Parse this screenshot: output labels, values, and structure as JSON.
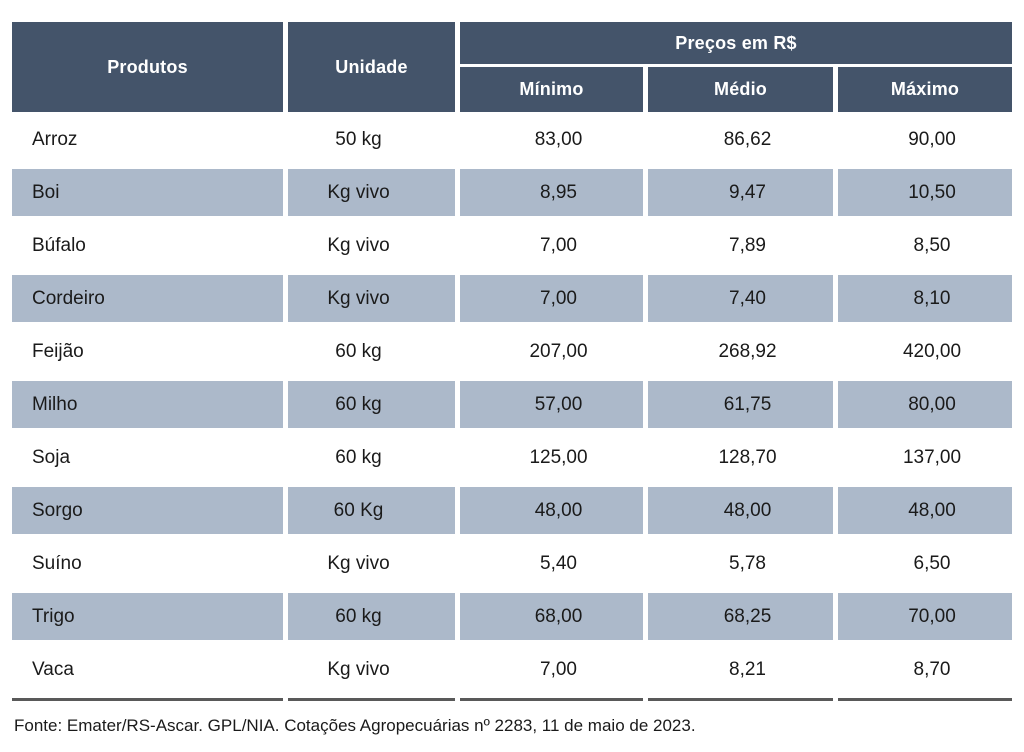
{
  "colors": {
    "header_bg": "#44546A",
    "header_text": "#FFFFFF",
    "stripe_bg": "#ACB9CA",
    "body_text": "#1A1A1A",
    "rule": "#595959"
  },
  "table": {
    "headers": {
      "produtos": "Produtos",
      "unidade": "Unidade",
      "precos_group": "Preços em R$",
      "minimo": "Mínimo",
      "medio": "Médio",
      "maximo": "Máximo"
    },
    "rows": [
      {
        "produto": "Arroz",
        "unidade": "50 kg",
        "minimo": "83,00",
        "medio": "86,62",
        "maximo": "90,00"
      },
      {
        "produto": "Boi",
        "unidade": "Kg vivo",
        "minimo": "8,95",
        "medio": "9,47",
        "maximo": "10,50"
      },
      {
        "produto": "Búfalo",
        "unidade": "Kg vivo",
        "minimo": "7,00",
        "medio": "7,89",
        "maximo": "8,50"
      },
      {
        "produto": "Cordeiro",
        "unidade": "Kg vivo",
        "minimo": "7,00",
        "medio": "7,40",
        "maximo": "8,10"
      },
      {
        "produto": "Feijão",
        "unidade": "60 kg",
        "minimo": "207,00",
        "medio": "268,92",
        "maximo": "420,00"
      },
      {
        "produto": "Milho",
        "unidade": "60 kg",
        "minimo": "57,00",
        "medio": "61,75",
        "maximo": "80,00"
      },
      {
        "produto": "Soja",
        "unidade": "60 kg",
        "minimo": "125,00",
        "medio": "128,70",
        "maximo": "137,00"
      },
      {
        "produto": "Sorgo",
        "unidade": "60 Kg",
        "minimo": "48,00",
        "medio": "48,00",
        "maximo": "48,00"
      },
      {
        "produto": "Suíno",
        "unidade": "Kg vivo",
        "minimo": "5,40",
        "medio": "5,78",
        "maximo": "6,50"
      },
      {
        "produto": "Trigo",
        "unidade": "60 kg",
        "minimo": "68,00",
        "medio": "68,25",
        "maximo": "70,00"
      },
      {
        "produto": "Vaca",
        "unidade": "Kg vivo",
        "minimo": "7,00",
        "medio": "8,21",
        "maximo": "8,70"
      }
    ]
  },
  "footer": {
    "source": "Fonte: Emater/RS-Ascar. GPL/NIA. Cotações Agropecuárias nº 2283, 11 de maio de 2023."
  },
  "chart_data": {
    "type": "table",
    "title": "Preços em R$",
    "columns": [
      "Produtos",
      "Unidade",
      "Mínimo",
      "Médio",
      "Máximo"
    ],
    "rows": [
      [
        "Arroz",
        "50 kg",
        "83,00",
        "86,62",
        "90,00"
      ],
      [
        "Boi",
        "Kg vivo",
        "8,95",
        "9,47",
        "10,50"
      ],
      [
        "Búfalo",
        "Kg vivo",
        "7,00",
        "7,89",
        "8,50"
      ],
      [
        "Cordeiro",
        "Kg vivo",
        "7,00",
        "7,40",
        "8,10"
      ],
      [
        "Feijão",
        "60 kg",
        "207,00",
        "268,92",
        "420,00"
      ],
      [
        "Milho",
        "60 kg",
        "57,00",
        "61,75",
        "80,00"
      ],
      [
        "Soja",
        "60 kg",
        "125,00",
        "128,70",
        "137,00"
      ],
      [
        "Sorgo",
        "60 Kg",
        "48,00",
        "48,00",
        "48,00"
      ],
      [
        "Suíno",
        "Kg vivo",
        "5,40",
        "5,78",
        "6,50"
      ],
      [
        "Trigo",
        "60 kg",
        "68,00",
        "68,25",
        "70,00"
      ],
      [
        "Vaca",
        "Kg vivo",
        "7,00",
        "8,21",
        "8,70"
      ]
    ]
  }
}
